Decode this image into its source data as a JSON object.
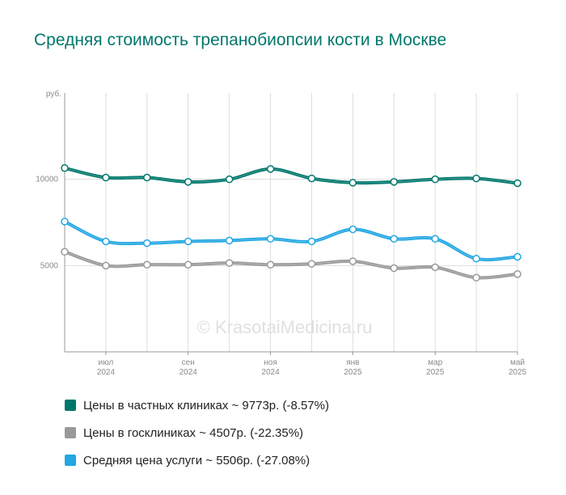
{
  "title": "Средняя стоимость трепанобиопсии кости в Москве",
  "watermark": "© KrasotaiMedicina.ru",
  "chart_data": {
    "type": "line",
    "y_unit": "руб.",
    "ylim": [
      0,
      15000
    ],
    "y_ticks": [
      5000,
      10000
    ],
    "x": [
      "2024-06",
      "2024-07",
      "2024-08",
      "2024-09",
      "2024-10",
      "2024-11",
      "2024-12",
      "2025-01",
      "2025-02",
      "2025-03",
      "2025-04",
      "2025-05"
    ],
    "x_tick_labels": [
      {
        "month": "июл",
        "year": "2024"
      },
      {
        "month": "сен",
        "year": "2024"
      },
      {
        "month": "ноя",
        "year": "2024"
      },
      {
        "month": "янв",
        "year": "2025"
      },
      {
        "month": "мар",
        "year": "2025"
      },
      {
        "month": "май",
        "year": "2025"
      }
    ],
    "grid": true,
    "legend_position": "bottom",
    "series": [
      {
        "name": "Цены в частных клиниках",
        "color": "#00776b",
        "values": [
          10650,
          10100,
          10100,
          9850,
          10000,
          10600,
          10050,
          9800,
          9850,
          10000,
          10050,
          9773
        ]
      },
      {
        "name": "Средняя цена услуги",
        "color": "#22a7e2",
        "values": [
          7550,
          6400,
          6300,
          6400,
          6450,
          6550,
          6400,
          7100,
          6550,
          6550,
          5400,
          5506
        ]
      },
      {
        "name": "Цены в госклиниках",
        "color": "#999999",
        "values": [
          5800,
          5000,
          5050,
          5050,
          5150,
          5050,
          5100,
          5250,
          4850,
          4900,
          4300,
          4507
        ]
      }
    ]
  },
  "legend": [
    {
      "label": "Цены в частных клиниках ~ 9773р. (-8.57%)",
      "color": "#00776b"
    },
    {
      "label": "Цены в госклиниках ~ 4507р. (-22.35%)",
      "color": "#999999"
    },
    {
      "label": "Средняя цена услуги ~ 5506р. (-27.08%)",
      "color": "#22a7e2"
    }
  ]
}
